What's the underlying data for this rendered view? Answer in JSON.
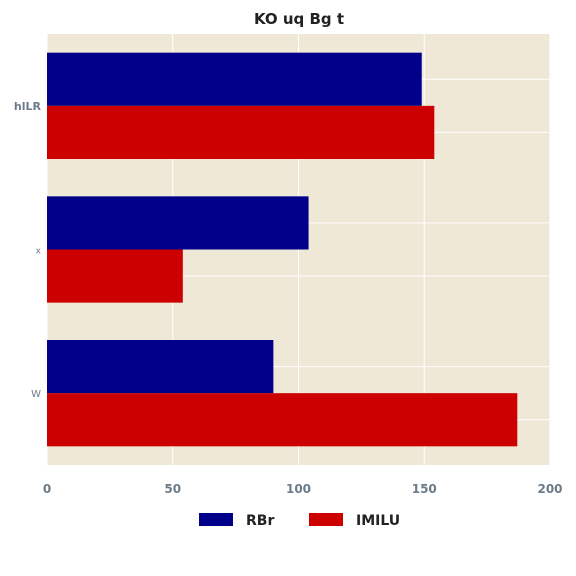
{
  "chart_data": {
    "type": "bar",
    "orientation": "horizontal",
    "title": "KO uq Bg t",
    "xlabel": "",
    "ylabel": "",
    "categories": [
      "hlLR",
      "x",
      "W"
    ],
    "series": [
      {
        "name": "RBr",
        "color": "#00008b",
        "values": [
          149,
          104,
          90
        ]
      },
      {
        "name": "IMILU",
        "color": "#cc0000",
        "values": [
          154,
          54,
          187
        ]
      }
    ],
    "xlim": [
      0,
      200
    ],
    "xticks": [
      0,
      50,
      100,
      150,
      200
    ],
    "grid": true,
    "legend_position": "bottom-center",
    "background_color": "#efe8d7",
    "grid_color": "#ffffff"
  }
}
